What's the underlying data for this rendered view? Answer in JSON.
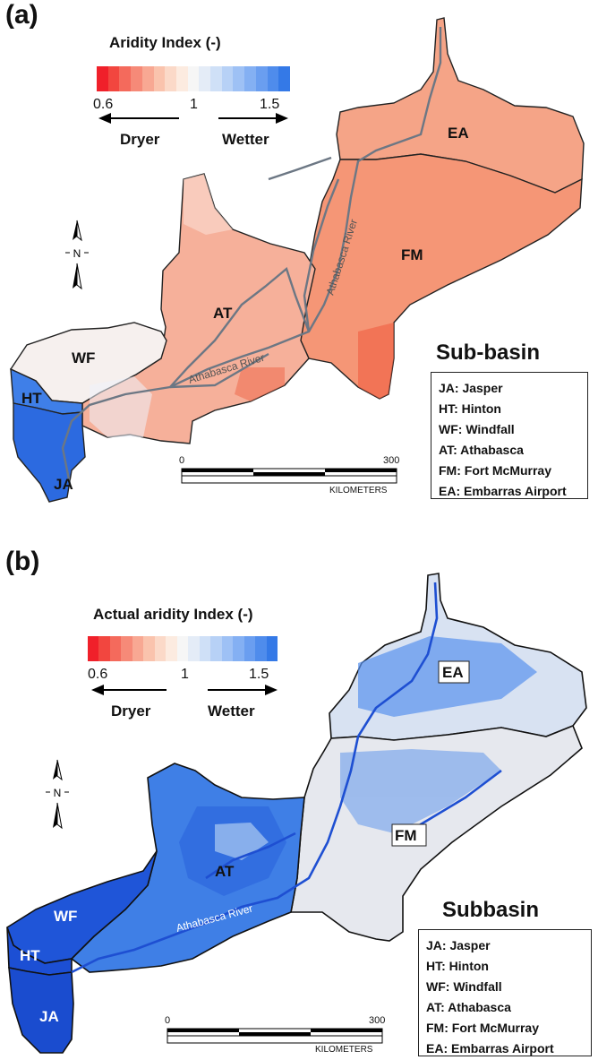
{
  "panels": [
    {
      "letter": "(a)",
      "legend_title": "Aridity Index (-)",
      "ticks": [
        "0.6",
        "1",
        "1.5"
      ],
      "dryer": "Dryer",
      "wetter": "Wetter",
      "box_title": "Sub-basin",
      "subbasins": [
        "JA: Jasper",
        "HT: Hinton",
        "WF: Windfall",
        "AT: Athabasca",
        "FM: Fort McMurray",
        "EA: Embarras Airport"
      ],
      "map_labels": [
        "EA",
        "FM",
        "AT",
        "WF",
        "HT",
        "JA"
      ],
      "river_labels": [
        "Athabasca River",
        "Athabasca River"
      ],
      "north": "N",
      "scale": {
        "min": "0",
        "max": "300",
        "unit": "KILOMETERS"
      }
    },
    {
      "letter": "(b)",
      "legend_title": "Actual aridity Index (-)",
      "ticks": [
        "0.6",
        "1",
        "1.5"
      ],
      "dryer": "Dryer",
      "wetter": "Wetter",
      "box_title": "Subbasin",
      "subbasins": [
        "JA: Jasper",
        "HT: Hinton",
        "WF: Windfall",
        "AT: Athabasca",
        "FM: Fort McMurray",
        "EA: Embarras Airport"
      ],
      "map_labels": [
        "EA",
        "FM",
        "AT",
        "WF",
        "HT",
        "JA"
      ],
      "river_labels": [
        "Athabasca River"
      ],
      "north": "N",
      "scale": {
        "min": "0",
        "max": "300",
        "unit": "KILOMETERS"
      }
    }
  ],
  "colors": {
    "ramp": [
      "#f0202a",
      "#f2463f",
      "#f46a5c",
      "#f68a78",
      "#f8a893",
      "#fac3ad",
      "#fbd9c8",
      "#fcebe0",
      "#f6f6f6",
      "#e4ecf7",
      "#cfe0f7",
      "#b7d1f6",
      "#9ec1f5",
      "#84b0f3",
      "#6a9ef0",
      "#4f8cec",
      "#3479e7"
    ],
    "dry_light": "#f7c7b4",
    "dry_mid": "#f39a7e",
    "dry_strong": "#ee6c50",
    "neutral": "#f5f2f1",
    "wet_light": "#c7d9f3",
    "wet_mid": "#7aa6ea",
    "wet_strong": "#2a64dc",
    "river": "#5f6b78"
  }
}
